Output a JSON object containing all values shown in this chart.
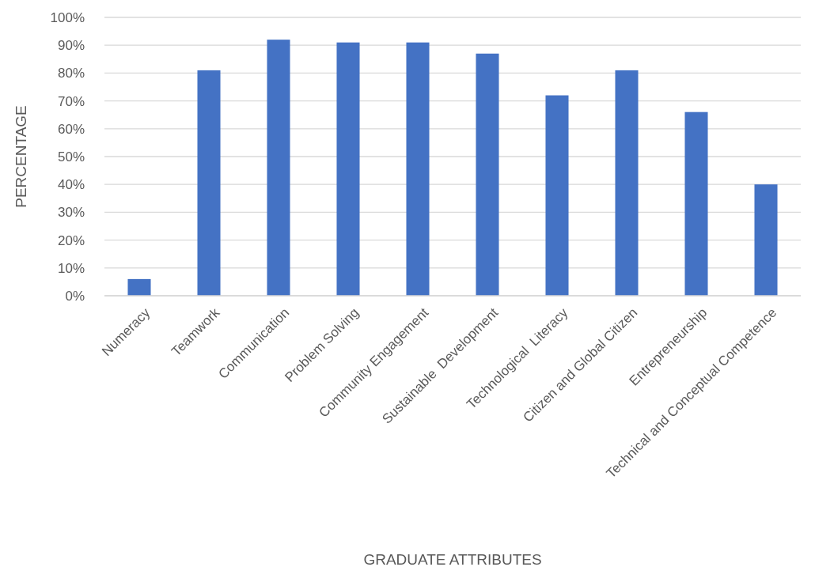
{
  "chart_data": {
    "type": "bar",
    "xlabel": "GRADUATE ATTRIBUTES",
    "ylabel": "PERCENTAGE",
    "categories": [
      "Numeracy",
      "Teamwork",
      "Communication",
      "Problem Solving",
      "Community Engagement",
      "Sustainable  Development",
      "Technological  Literacy",
      "Citizen and Global Citizen",
      "Entrepreneurship",
      "Technical and Conceptual Competence"
    ],
    "values": [
      6,
      81,
      92,
      91,
      91,
      87,
      72,
      81,
      66,
      40
    ],
    "color": "#4472c4",
    "ylim": [
      0,
      100
    ],
    "yticks": [
      {
        "value": 0,
        "label": "0%"
      },
      {
        "value": 10,
        "label": "10%"
      },
      {
        "value": 20,
        "label": "20%"
      },
      {
        "value": 30,
        "label": "30%"
      },
      {
        "value": 40,
        "label": "40%"
      },
      {
        "value": 50,
        "label": "50%"
      },
      {
        "value": 60,
        "label": "60%"
      },
      {
        "value": 70,
        "label": "70%"
      },
      {
        "value": 80,
        "label": "80%"
      },
      {
        "value": 90,
        "label": "90%"
      },
      {
        "value": 100,
        "label": "100%"
      }
    ],
    "grid": "y"
  }
}
